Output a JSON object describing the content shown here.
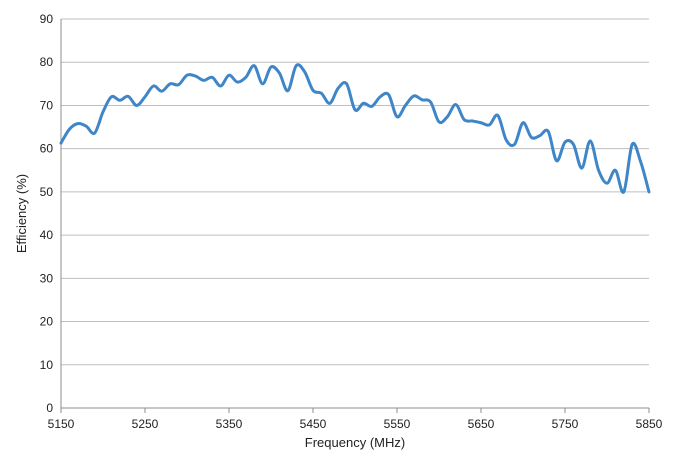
{
  "chart_data": {
    "type": "line",
    "title": "",
    "xlabel": "Frequency (MHz)",
    "ylabel": "Efficiency (%)",
    "xlim": [
      5150,
      5850
    ],
    "ylim": [
      0,
      90
    ],
    "x_ticks": [
      5150,
      5250,
      5350,
      5450,
      5550,
      5650,
      5750,
      5850
    ],
    "y_ticks": [
      0,
      10,
      20,
      30,
      40,
      50,
      60,
      70,
      80,
      90
    ],
    "grid": "horizontal",
    "legend": "none",
    "series": [
      {
        "color": "#3f86c8",
        "x": [
          5150,
          5160,
          5170,
          5180,
          5190,
          5200,
          5210,
          5220,
          5230,
          5240,
          5250,
          5260,
          5270,
          5280,
          5290,
          5300,
          5310,
          5320,
          5330,
          5340,
          5350,
          5360,
          5370,
          5380,
          5390,
          5400,
          5410,
          5420,
          5430,
          5440,
          5450,
          5460,
          5470,
          5480,
          5490,
          5500,
          5510,
          5520,
          5530,
          5540,
          5550,
          5560,
          5570,
          5580,
          5590,
          5600,
          5610,
          5620,
          5630,
          5640,
          5650,
          5660,
          5670,
          5680,
          5690,
          5700,
          5710,
          5720,
          5730,
          5740,
          5750,
          5760,
          5770,
          5780,
          5790,
          5800,
          5810,
          5820,
          5830,
          5840,
          5850
        ],
        "values": [
          61.3,
          64.5,
          65.8,
          65.2,
          63.6,
          68.5,
          72.0,
          71.2,
          72.1,
          70.0,
          72.0,
          74.5,
          73.3,
          75.0,
          74.8,
          77.0,
          76.8,
          75.8,
          76.5,
          74.5,
          77.0,
          75.4,
          76.5,
          79.2,
          75.0,
          78.9,
          77.5,
          73.4,
          79.2,
          77.8,
          73.5,
          72.8,
          70.5,
          74.0,
          75.0,
          69.0,
          70.5,
          69.8,
          72.0,
          72.5,
          67.4,
          70.0,
          72.2,
          71.3,
          70.8,
          66.2,
          67.4,
          70.2,
          66.7,
          66.4,
          66.0,
          65.5,
          67.7,
          62.0,
          61.0,
          66.0,
          62.6,
          63.0,
          64.0,
          57.2,
          61.5,
          61.0,
          55.5,
          61.8,
          55.0,
          52.0,
          55.0,
          50.0,
          61.0,
          57.0,
          50.0
        ]
      }
    ]
  }
}
